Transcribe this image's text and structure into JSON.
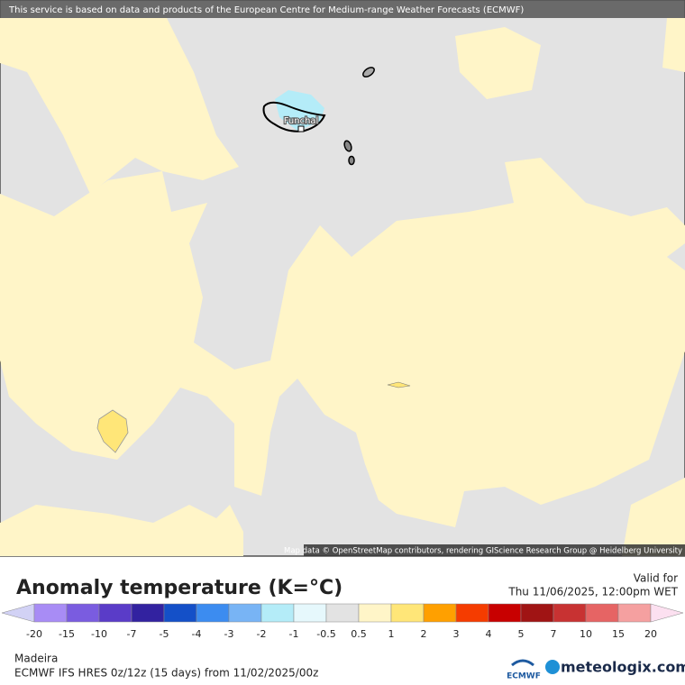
{
  "map": {
    "banner": "This service is based on data and products of the European Centre for Medium-range Weather Forecasts (ECMWF)",
    "place_label": "Funchal",
    "attribution": "Map data © OpenStreetMap contributors, rendering GIScience Research Group @ Heidelberg University"
  },
  "legend": {
    "title": "Anomaly temperature (K=°C)",
    "valid_label": "Valid for",
    "valid_time": "Thu 11/06/2025, 12:00pm WET",
    "ticks": [
      -20,
      -15,
      -10,
      -7,
      -5,
      -4,
      -3,
      -2,
      -1,
      -0.5,
      0.5,
      1,
      2,
      3,
      4,
      5,
      7,
      10,
      15,
      20
    ],
    "colors": [
      "#d2d2f5",
      "#a88cf5",
      "#7a5ce0",
      "#5a3cc8",
      "#3222a0",
      "#1450c8",
      "#3c8cf0",
      "#78b4f5",
      "#b4ecf8",
      "#e6f8fc",
      "#e3e3e3",
      "#fff5c8",
      "#ffe678",
      "#ffa000",
      "#f53c00",
      "#c80000",
      "#a01414",
      "#c83232",
      "#e66464",
      "#f5a0a0",
      "#fce0f0"
    ],
    "region": "Madeira",
    "model": "ECMWF IFS HRES 0z/12z (15 days) from 11/02/2025/00z"
  },
  "logos": {
    "ecmwf": "ECMWF",
    "meteologix": "meteologix.com"
  }
}
